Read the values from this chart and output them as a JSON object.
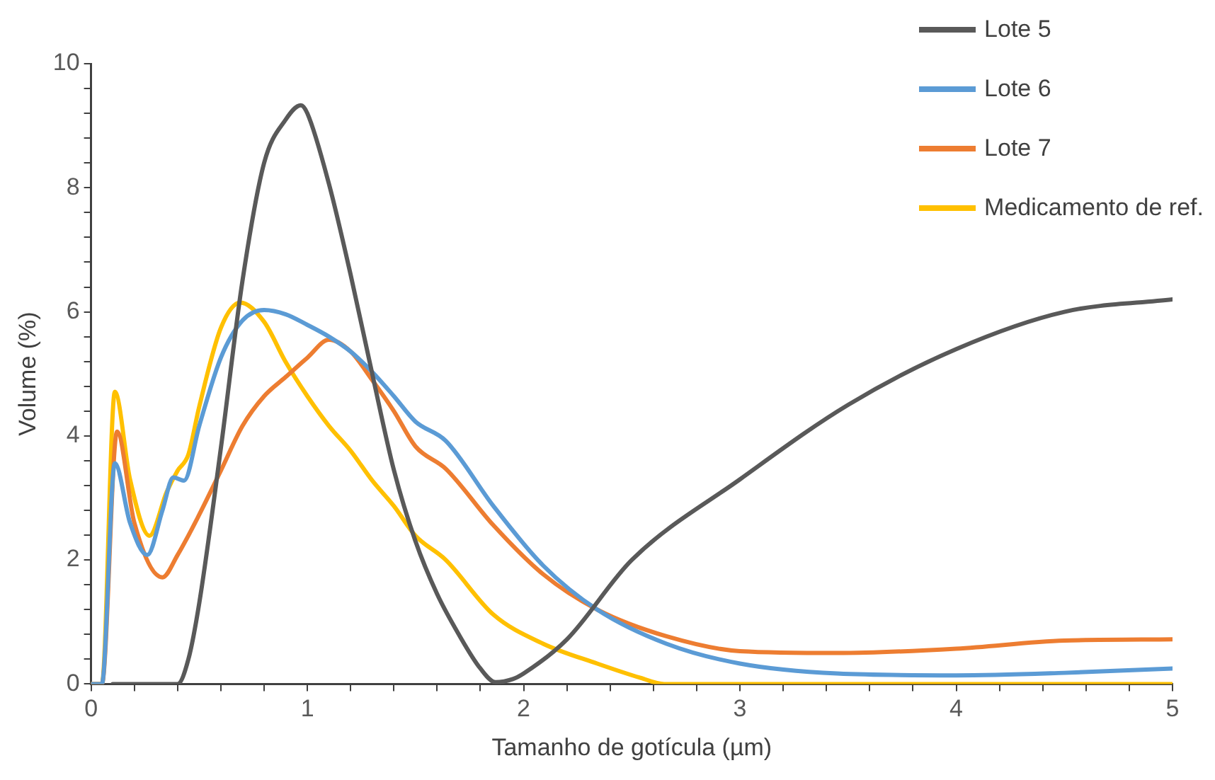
{
  "chart_data": {
    "type": "line",
    "xlabel": "Tamanho de gotícula (µm)",
    "ylabel": "Volume (%)",
    "legend": "top right",
    "grid": false,
    "marker": "none",
    "line_style": "solid",
    "xlim": [
      0,
      5
    ],
    "ylim": [
      0,
      10
    ],
    "xticks": [
      0,
      {
        "value": 0.2,
        "label": null
      },
      {
        "value": 0.4,
        "label": null
      },
      {
        "value": 0.6,
        "label": null
      },
      {
        "value": 0.8,
        "label": null
      },
      1,
      {
        "value": 1.2,
        "label": null
      },
      {
        "value": 1.4,
        "label": null
      },
      {
        "value": 1.6,
        "label": null
      },
      {
        "value": 1.8,
        "label": null
      },
      2,
      {
        "value": 2.2,
        "label": null
      },
      {
        "value": 2.4,
        "label": null
      },
      {
        "value": 2.6,
        "label": null
      },
      {
        "value": 2.8,
        "label": null
      },
      3,
      {
        "value": 3.2,
        "label": null
      },
      {
        "value": 3.4,
        "label": null
      },
      {
        "value": 3.6,
        "label": null
      },
      {
        "value": 3.8,
        "label": null
      },
      4,
      {
        "value": 4.2,
        "label": null
      },
      {
        "value": 4.4,
        "label": null
      },
      {
        "value": 4.6,
        "label": null
      },
      {
        "value": 4.8,
        "label": null
      },
      5
    ],
    "yticks": [
      0,
      {
        "value": 0.4,
        "label": null
      },
      {
        "value": 0.8,
        "label": null
      },
      {
        "value": 1.2,
        "label": null
      },
      {
        "value": 1.6,
        "label": null
      },
      2,
      {
        "value": 2.4,
        "label": null
      },
      {
        "value": 2.8,
        "label": null
      },
      {
        "value": 3.2,
        "label": null
      },
      {
        "value": 3.6,
        "label": null
      },
      4,
      {
        "value": 4.4,
        "label": null
      },
      {
        "value": 4.8,
        "label": null
      },
      {
        "value": 5.2,
        "label": null
      },
      {
        "value": 5.6,
        "label": null
      },
      6,
      {
        "value": 6.4,
        "label": null
      },
      {
        "value": 6.8,
        "label": null
      },
      {
        "value": 7.2,
        "label": null
      },
      {
        "value": 7.6,
        "label": null
      },
      8,
      {
        "value": 8.4,
        "label": null
      },
      {
        "value": 8.8,
        "label": null
      },
      {
        "value": 9.2,
        "label": null
      },
      {
        "value": 9.6,
        "label": null
      },
      10
    ],
    "series": [
      {
        "name": "Lote 5",
        "color": "#595959",
        "x": [
          0.1,
          0.4,
          0.45,
          0.5,
          0.6,
          0.7,
          0.8,
          0.9,
          0.97,
          1.0,
          1.1,
          1.2,
          1.3,
          1.4,
          1.5,
          1.6,
          1.7,
          1.8,
          1.87,
          1.95,
          2.0,
          2.2,
          2.5,
          3.0,
          3.5,
          4.0,
          4.5,
          5.0
        ],
        "values": [
          0,
          0,
          0.4,
          1.3,
          3.8,
          6.5,
          8.4,
          9.1,
          9.33,
          9.2,
          8.06,
          6.6,
          5.0,
          3.45,
          2.3,
          1.45,
          0.8,
          0.25,
          0.03,
          0.08,
          0.17,
          0.72,
          2.0,
          3.3,
          4.5,
          5.4,
          6.0,
          6.2
        ]
      },
      {
        "name": "Lote 6",
        "color": "#5b9bd5",
        "x": [
          0,
          0.05,
          0.11,
          0.18,
          0.26,
          0.33,
          0.38,
          0.43,
          0.5,
          0.6,
          0.7,
          0.8,
          0.9,
          1.0,
          1.1,
          1.2,
          1.3,
          1.4,
          1.5,
          1.64,
          1.86,
          2.09,
          2.34,
          2.66,
          3.0,
          3.45,
          4.0,
          4.5,
          5.0
        ],
        "values": [
          0,
          0,
          3.56,
          2.6,
          2.08,
          2.8,
          3.33,
          3.28,
          4.16,
          5.26,
          5.86,
          6.03,
          5.96,
          5.79,
          5.6,
          5.36,
          5.03,
          4.64,
          4.23,
          3.92,
          2.87,
          1.91,
          1.2,
          0.65,
          0.33,
          0.17,
          0.14,
          0.18,
          0.25
        ]
      },
      {
        "name": "Lote 7",
        "color": "#ed7d31",
        "x": [
          0,
          0.05,
          0.12,
          0.2,
          0.33,
          0.4,
          0.5,
          0.6,
          0.7,
          0.8,
          0.9,
          1.0,
          1.1,
          1.2,
          1.3,
          1.4,
          1.5,
          1.64,
          1.86,
          2.09,
          2.34,
          2.66,
          3.0,
          3.45,
          4.0,
          4.5,
          5.0
        ],
        "values": [
          0,
          0,
          4.07,
          2.6,
          1.72,
          2.08,
          2.73,
          3.44,
          4.16,
          4.64,
          4.95,
          5.26,
          5.55,
          5.36,
          4.9,
          4.4,
          3.83,
          3.47,
          2.56,
          1.77,
          1.2,
          0.77,
          0.53,
          0.5,
          0.57,
          0.7,
          0.72
        ]
      },
      {
        "name": "Medicamento de ref.",
        "color": "#ffc000",
        "x": [
          0,
          0.05,
          0.11,
          0.18,
          0.27,
          0.35,
          0.4,
          0.45,
          0.5,
          0.6,
          0.69,
          0.8,
          0.9,
          1.0,
          1.1,
          1.2,
          1.3,
          1.4,
          1.5,
          1.64,
          1.86,
          2.09,
          2.34,
          2.54,
          2.65,
          3.0,
          4.0,
          5.0
        ],
        "values": [
          0,
          0,
          4.71,
          3.3,
          2.39,
          3.1,
          3.44,
          3.7,
          4.47,
          5.74,
          6.15,
          5.84,
          5.19,
          4.64,
          4.16,
          3.76,
          3.28,
          2.87,
          2.39,
          2.0,
          1.12,
          0.65,
          0.33,
          0.1,
          0,
          0,
          0,
          0
        ]
      }
    ]
  }
}
